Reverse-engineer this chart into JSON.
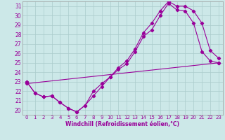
{
  "xlabel": "Windchill (Refroidissement éolien,°C)",
  "bg_color": "#cce8e8",
  "grid_color": "#aacccc",
  "line_color": "#990099",
  "xlim": [
    -0.5,
    23.5
  ],
  "ylim": [
    19.5,
    31.5
  ],
  "xticks": [
    0,
    1,
    2,
    3,
    4,
    5,
    6,
    7,
    8,
    9,
    10,
    11,
    12,
    13,
    14,
    15,
    16,
    17,
    18,
    19,
    20,
    21,
    22,
    23
  ],
  "yticks": [
    20,
    21,
    22,
    23,
    24,
    25,
    26,
    27,
    28,
    29,
    30,
    31
  ],
  "series1_x": [
    0,
    1,
    2,
    3,
    4,
    5,
    6,
    7,
    8,
    9,
    10,
    11,
    12,
    13,
    14,
    15,
    16,
    17,
    18,
    19,
    20,
    21,
    22,
    23
  ],
  "series1_y": [
    23.0,
    21.8,
    21.4,
    21.5,
    20.8,
    20.2,
    19.8,
    20.5,
    22.0,
    22.8,
    23.5,
    24.3,
    24.9,
    26.2,
    27.8,
    28.5,
    30.0,
    31.3,
    30.6,
    30.5,
    29.2,
    26.2,
    25.2,
    25.0
  ],
  "series2_x": [
    0,
    1,
    2,
    3,
    4,
    5,
    6,
    7,
    8,
    9,
    10,
    11,
    12,
    13,
    14,
    15,
    16,
    17,
    18,
    19,
    20,
    21,
    22,
    23
  ],
  "series2_y": [
    23.0,
    21.8,
    21.4,
    21.5,
    20.8,
    20.2,
    19.8,
    20.5,
    21.5,
    22.5,
    23.5,
    24.5,
    25.2,
    26.5,
    28.2,
    29.2,
    30.5,
    31.5,
    31.0,
    31.0,
    30.5,
    29.2,
    26.3,
    25.5
  ],
  "series3_x": [
    0,
    23
  ],
  "series3_y": [
    22.8,
    25.0
  ]
}
